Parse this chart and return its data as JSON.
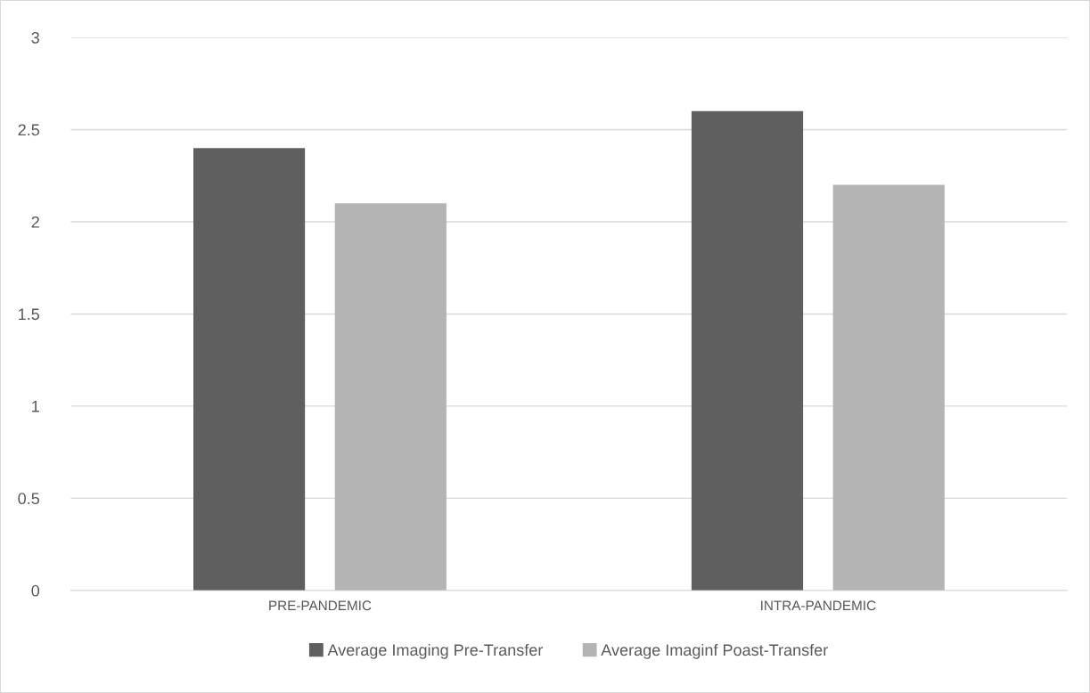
{
  "chart_data": {
    "type": "bar",
    "categories": [
      "PRE-PANDEMIC",
      "INTRA-PANDEMIC"
    ],
    "series": [
      {
        "name": "Average Imaging Pre-Transfer",
        "color": "#5f5f5f",
        "values": [
          2.4,
          2.6
        ]
      },
      {
        "name": "Average Imaginf Poast-Transfer",
        "color": "#b4b4b4",
        "values": [
          2.1,
          2.2
        ]
      }
    ],
    "ylim": [
      0,
      3
    ],
    "yticks": [
      0,
      0.5,
      1,
      1.5,
      2,
      2.5,
      3
    ],
    "grid": "y",
    "legend": "bottom"
  }
}
